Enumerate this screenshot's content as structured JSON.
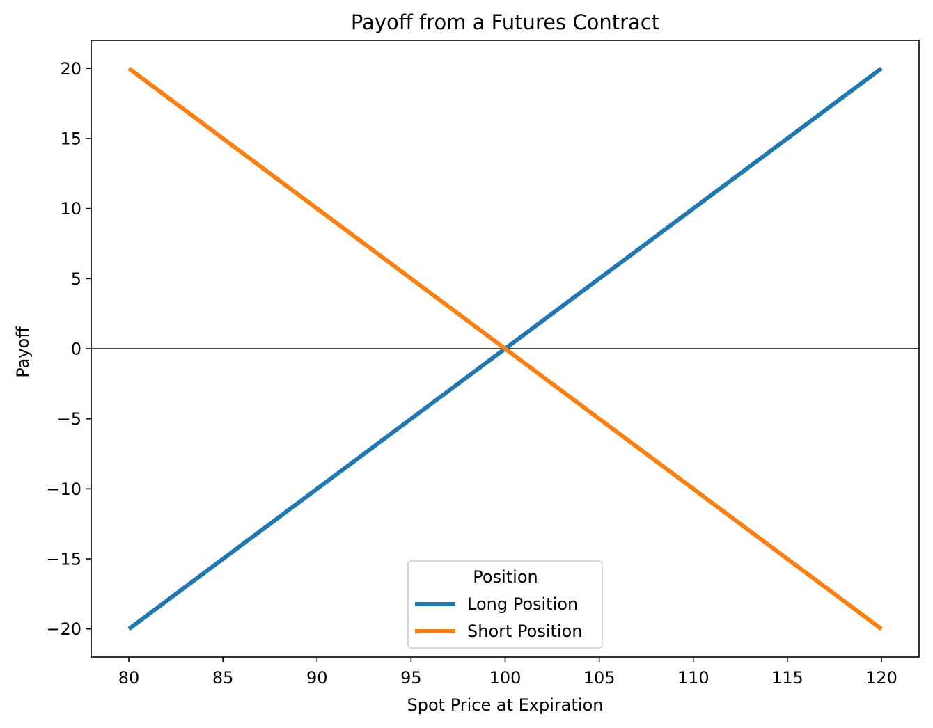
{
  "chart_data": {
    "type": "line",
    "title": "Payoff from a Futures Contract",
    "xlabel": "Spot Price at Expiration",
    "ylabel": "Payoff",
    "xlim": [
      78,
      122
    ],
    "ylim": [
      -22,
      22
    ],
    "xticks": [
      80,
      85,
      90,
      95,
      100,
      105,
      110,
      115,
      120
    ],
    "yticks": [
      -20,
      -15,
      -10,
      -5,
      0,
      5,
      10,
      15,
      20
    ],
    "xtick_labels": [
      "80",
      "85",
      "90",
      "95",
      "100",
      "105",
      "110",
      "115",
      "120"
    ],
    "ytick_labels": [
      "−20",
      "−15",
      "−10",
      "−5",
      "0",
      "5",
      "10",
      "15",
      "20"
    ],
    "horizontal_reference_line": 0,
    "grid": false,
    "legend": {
      "title": "Position",
      "placement": "lower-center"
    },
    "series": [
      {
        "name": "Long Position",
        "color": "#1f77b4",
        "x": [
          80,
          120
        ],
        "y": [
          -20,
          20
        ]
      },
      {
        "name": "Short Position",
        "color": "#ff7f0e",
        "x": [
          80,
          120
        ],
        "y": [
          20,
          -20
        ]
      }
    ]
  }
}
